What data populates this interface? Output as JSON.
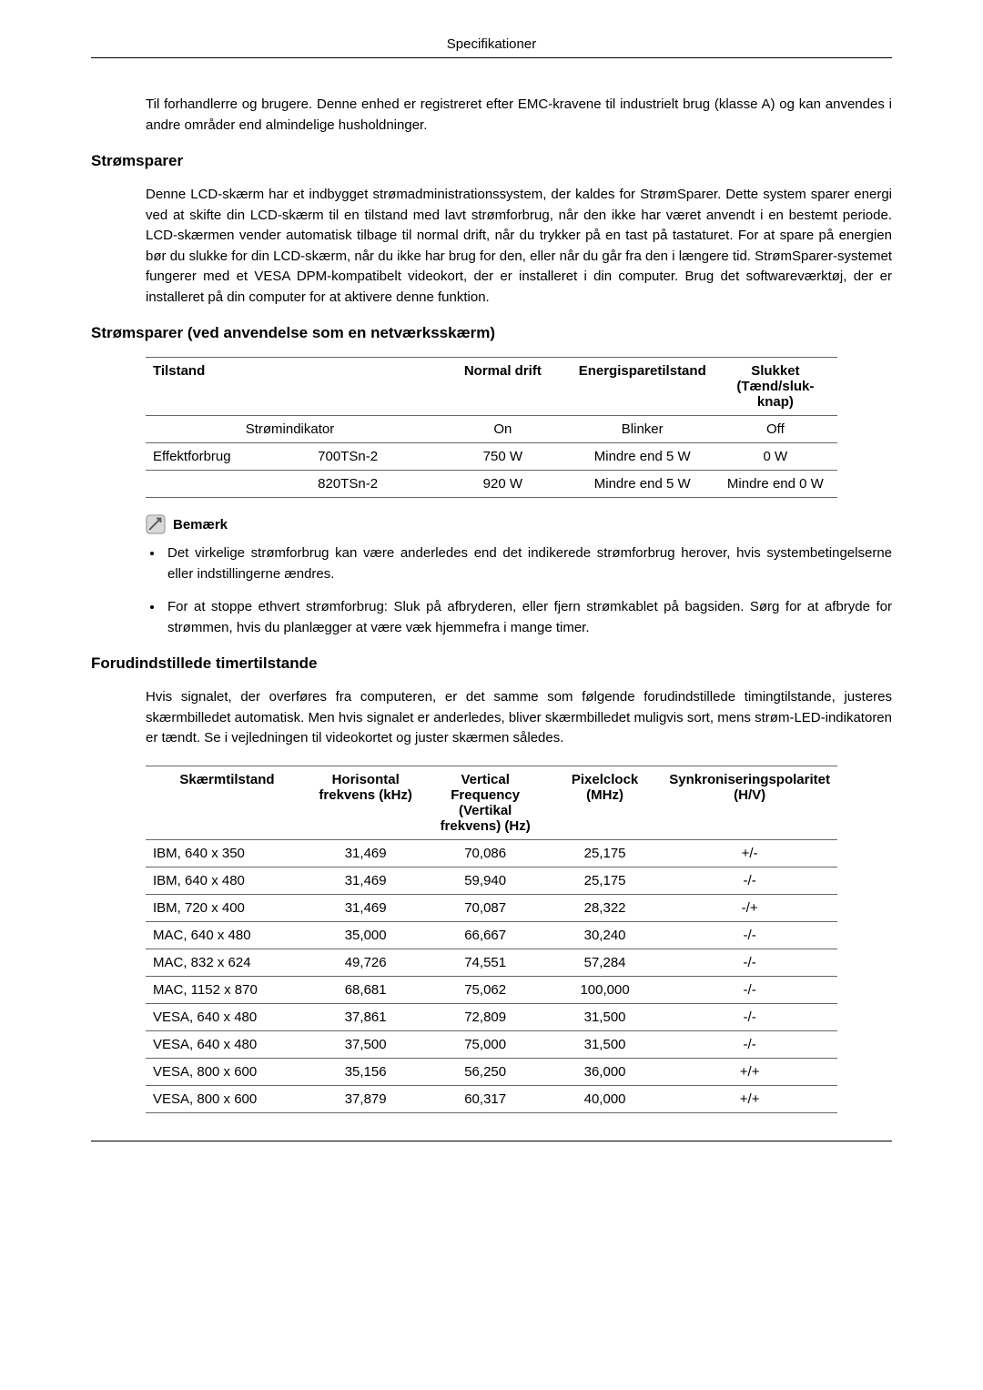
{
  "page_header": "Specifikationer",
  "intro_para": "Til forhandlerre og brugere. Denne enhed er registreret efter EMC-kravene til industrielt brug (klasse A) og kan anvendes i andre områder end almindelige husholdninger.",
  "section1": {
    "title": "Strømsparer",
    "para": "Denne LCD-skærm har et indbygget strømadministrationssystem, der kaldes for StrømSparer. Dette system sparer energi ved at skifte din LCD-skærm til en tilstand med lavt strømforbrug, når den ikke har været anvendt i en bestemt periode. LCD-skærmen vender automatisk tilbage til normal drift, når du trykker på en tast på tastaturet. For at spare på energien bør du slukke for din LCD-skærm, når du ikke har brug for den, eller når du går fra den i længere tid. StrømSparer-systemet fungerer med et VESA DPM-kompatibelt videokort, der er installeret i din computer. Brug det softwareværktøj, der er installeret på din computer for at aktivere denne funktion."
  },
  "section2": {
    "title": "Strømsparer (ved anvendelse som en netværksskærm)"
  },
  "table1": {
    "headers": [
      "Tilstand",
      "Normal drift",
      "Energisparetilstand",
      "Slukket (Tænd/sluk-knap)"
    ],
    "row_indicator_label": "Strømindikator",
    "row_indicator": [
      "On",
      "Blinker",
      "Off"
    ],
    "row_eff_label": "Effektforbrug",
    "rows_eff": [
      {
        "model": "700TSn-2",
        "vals": [
          "750 W",
          "Mindre end 5 W",
          "0 W"
        ]
      },
      {
        "model": "820TSn-2",
        "vals": [
          "920 W",
          "Mindre end 5 W",
          "Mindre end 0 W"
        ]
      }
    ]
  },
  "note": {
    "title": "Bemærk",
    "items": [
      "Det virkelige strømforbrug kan være anderledes end det indikerede strømforbrug herover, hvis systembetingelserne eller indstillingerne ændres.",
      "For at stoppe ethvert strømforbrug: Sluk på afbryderen, eller fjern strømkablet på bagsiden. Sørg for at afbryde for strømmen, hvis du planlægger at være væk hjemmefra i mange timer."
    ]
  },
  "section3": {
    "title": "Forudindstillede timertilstande",
    "para": "Hvis signalet, der overføres fra computeren, er det samme som følgende forudindstillede timingtilstande, justeres skærmbilledet automatisk. Men hvis signalet er anderledes, bliver skærmbilledet muligvis sort, mens strøm-LED-indikatoren er tændt. Se i vejledningen til videokortet og juster skærmen således."
  },
  "table2": {
    "headers": [
      "Skærmtilstand",
      "Horisontal frekvens (kHz)",
      "Vertical Frequency (Vertikal frekvens) (Hz)",
      "Pixelclock (MHz)",
      "Synkroniseringspolaritet (H/V)"
    ],
    "rows": [
      [
        "IBM, 640 x 350",
        "31,469",
        "70,086",
        "25,175",
        "+/-"
      ],
      [
        "IBM, 640 x 480",
        "31,469",
        "59,940",
        "25,175",
        "-/-"
      ],
      [
        "IBM, 720 x 400",
        "31,469",
        "70,087",
        "28,322",
        "-/+"
      ],
      [
        "MAC, 640 x 480",
        "35,000",
        "66,667",
        "30,240",
        "-/-"
      ],
      [
        "MAC, 832 x 624",
        "49,726",
        "74,551",
        "57,284",
        "-/-"
      ],
      [
        "MAC, 1152 x 870",
        "68,681",
        "75,062",
        "100,000",
        "-/-"
      ],
      [
        "VESA, 640 x 480",
        "37,861",
        "72,809",
        "31,500",
        "-/-"
      ],
      [
        "VESA, 640 x 480",
        "37,500",
        "75,000",
        "31,500",
        "-/-"
      ],
      [
        "VESA, 800 x 600",
        "35,156",
        "56,250",
        "36,000",
        "+/+"
      ],
      [
        "VESA, 800 x 600",
        "37,879",
        "60,317",
        "40,000",
        "+/+"
      ]
    ]
  }
}
